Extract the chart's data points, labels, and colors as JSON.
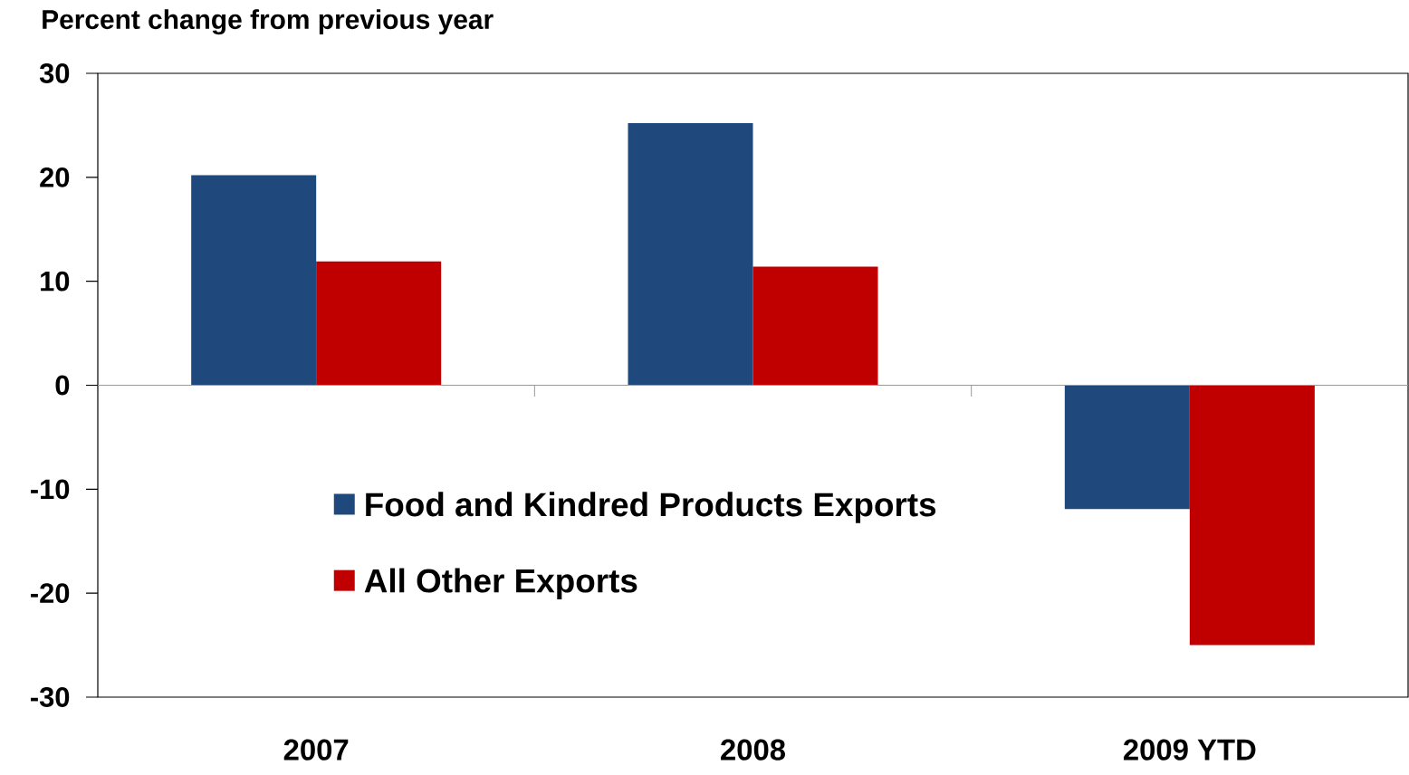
{
  "chart_data": {
    "type": "bar",
    "title": "Percent change from previous year",
    "categories": [
      "2007",
      "2008",
      "2009 YTD"
    ],
    "series": [
      {
        "name": "Food and Kindred Products Exports",
        "color": "#1f497d",
        "values": [
          20.2,
          25.2,
          -11.9
        ]
      },
      {
        "name": "All Other Exports",
        "color": "#c00000",
        "values": [
          11.9,
          11.4,
          -25.0
        ]
      }
    ],
    "ylim": [
      -30,
      30
    ],
    "yticks": [
      -30,
      -20,
      -10,
      0,
      10,
      20,
      30
    ],
    "ref_lines": [
      {
        "axis": "y",
        "value": 0,
        "color": "#999999"
      }
    ],
    "grid": false,
    "legend": "bottom left"
  }
}
